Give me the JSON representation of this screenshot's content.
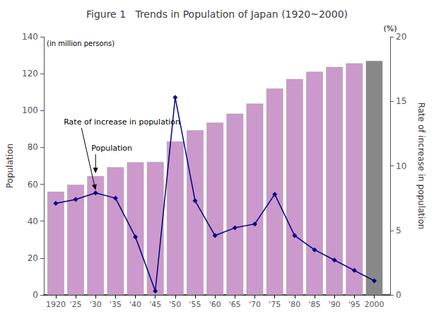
{
  "chart_data": {
    "type": "bar",
    "title": "Figure 1   Trends in Population of Japan (1920~2000)",
    "x": [
      1920,
      1925,
      1930,
      1935,
      1940,
      1945,
      1950,
      1955,
      1960,
      1965,
      1970,
      1975,
      1980,
      1985,
      1990,
      1995,
      2000
    ],
    "xlim": [
      1917,
      2004
    ],
    "xticks": [
      {
        "value": 1920,
        "label": "1920"
      },
      {
        "value": 1925,
        "label": "'25"
      },
      {
        "value": 1930,
        "label": "'30"
      },
      {
        "value": 1935,
        "label": "'35"
      },
      {
        "value": 1940,
        "label": "'40"
      },
      {
        "value": 1945,
        "label": "'45"
      },
      {
        "value": 1950,
        "label": "'50"
      },
      {
        "value": 1955,
        "label": "'55"
      },
      {
        "value": 1960,
        "label": "'60"
      },
      {
        "value": 1965,
        "label": "'65"
      },
      {
        "value": 1970,
        "label": "'70"
      },
      {
        "value": 1975,
        "label": "'75"
      },
      {
        "value": 1980,
        "label": "'80"
      },
      {
        "value": 1985,
        "label": "'85"
      },
      {
        "value": 1990,
        "label": "'90"
      },
      {
        "value": 1995,
        "label": "'95"
      },
      {
        "value": 2000,
        "label": "2000"
      }
    ],
    "ylabel": "Population",
    "ylim": [
      0,
      140
    ],
    "yticks": [
      0,
      20,
      40,
      60,
      80,
      100,
      120,
      140
    ],
    "y2label": "Rate of increase in population",
    "y2lim": [
      0,
      20
    ],
    "y2ticks": [
      0,
      5,
      10,
      15,
      20
    ],
    "grid": false,
    "series": [
      {
        "name": "Population",
        "type": "bar",
        "colors": [
          "#CC99CC",
          "#CC99CC",
          "#CC99CC",
          "#CC99CC",
          "#CC99CC",
          "#CC99CC",
          "#CC99CC",
          "#CC99CC",
          "#CC99CC",
          "#CC99CC",
          "#CC99CC",
          "#CC99CC",
          "#CC99CC",
          "#CC99CC",
          "#CC99CC",
          "#CC99CC",
          "#888888"
        ],
        "values": [
          55.96,
          59.74,
          64.45,
          69.25,
          71.93,
          72.15,
          83.2,
          89.28,
          93.42,
          98.28,
          103.72,
          111.94,
          117.06,
          121.05,
          123.61,
          125.57,
          126.93
        ]
      },
      {
        "name": "Rate of increase in population",
        "type": "line",
        "axis": "y2",
        "color": "#000080",
        "marker": "diamond",
        "values": [
          7.1,
          7.4,
          7.9,
          7.5,
          4.5,
          0.3,
          15.3,
          7.3,
          4.6,
          5.2,
          5.5,
          7.8,
          4.6,
          3.5,
          2.7,
          1.9,
          1.1
        ]
      }
    ],
    "annotations": [
      {
        "text": "Rate of increase in population",
        "x": 1930,
        "y": 7.9,
        "axis": "y2"
      },
      {
        "text": "Population",
        "x": 1930,
        "y": 64.45
      },
      {
        "text": "(in million persons)"
      },
      {
        "text": "(%)"
      }
    ]
  }
}
